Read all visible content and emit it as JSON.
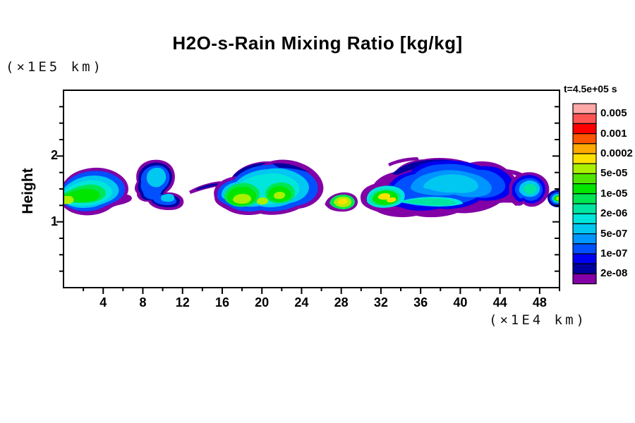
{
  "chart_data": {
    "type": "contour",
    "title": "H2O-s-Rain Mixing Ratio [kg/kg]",
    "time_label": "t=4.5e+05 s",
    "x_axis": {
      "unit": "(×1E4 km)",
      "min": 0,
      "max": 50,
      "major_ticks": [
        4,
        8,
        12,
        16,
        20,
        24,
        28,
        32,
        36,
        40,
        44,
        48
      ],
      "minor_step": 2
    },
    "y_axis": {
      "label": "Height",
      "unit": "(×1E5 km)",
      "min": 0,
      "max": 3,
      "major_ticks": [
        1,
        2
      ],
      "minor_step": 0.25
    },
    "colorbar": {
      "labels": [
        "0.005",
        "0.001",
        "0.0002",
        "5e-05",
        "1e-05",
        "2e-06",
        "5e-07",
        "1e-07",
        "2e-08"
      ],
      "levels_all": [
        "0.005",
        "0.002",
        "0.001",
        "0.0005",
        "0.0002",
        "0.0001",
        "5e-05",
        "2e-05",
        "1e-05",
        "5e-06",
        "2e-06",
        "1e-06",
        "5e-07",
        "2e-07",
        "1e-07",
        "5e-08",
        "2e-08"
      ],
      "colors": [
        "#ffa8a8",
        "#ff5454",
        "#ff0000",
        "#ff5400",
        "#ffa800",
        "#ffe100",
        "#aaf000",
        "#50e600",
        "#00e600",
        "#00e654",
        "#00e6a0",
        "#00e6dc",
        "#00c8f0",
        "#0096ff",
        "#0050ff",
        "#0000f0",
        "#0000a0",
        "#8200a5"
      ]
    },
    "features": [
      {
        "name": "cloud-1",
        "x_1e4km": [
          0,
          6.5
        ],
        "height_1e5km": [
          1.15,
          1.75
        ],
        "max_level": "5e-05"
      },
      {
        "name": "cloud-2",
        "x_1e4km": [
          7.5,
          11.5
        ],
        "height_1e5km": [
          1.2,
          1.9
        ],
        "max_level": "5e-07"
      },
      {
        "name": "cloud-3",
        "x_1e4km": [
          13,
          26
        ],
        "height_1e5km": [
          1.1,
          1.85
        ],
        "max_level": "1e-04"
      },
      {
        "name": "cloud-4",
        "x_1e4km": [
          27.5,
          45
        ],
        "height_1e5km": [
          1.1,
          1.95
        ],
        "max_level": "2e-04"
      },
      {
        "name": "cloud-5",
        "x_1e4km": [
          45.2,
          48.8
        ],
        "height_1e5km": [
          1.25,
          1.65
        ],
        "max_level": "2e-06"
      },
      {
        "name": "cloud-6",
        "x_1e4km": [
          49.3,
          50
        ],
        "height_1e5km": [
          1.25,
          1.5
        ],
        "max_level": "1e-04"
      }
    ]
  }
}
